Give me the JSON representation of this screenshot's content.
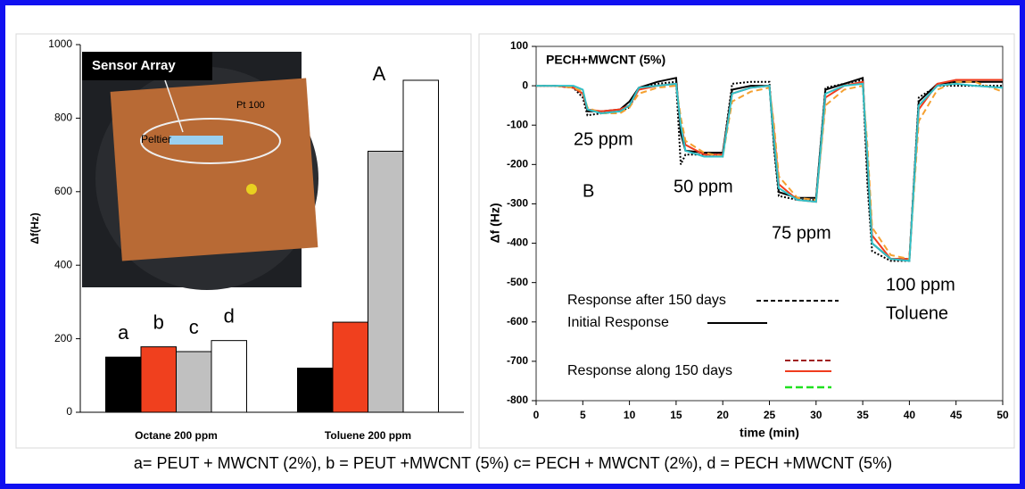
{
  "chart_data": [
    {
      "type": "bar",
      "ylabel": "Δf(Hz)",
      "annotation": "A",
      "inset_labels": [
        "Sensor Array",
        "Peltier",
        "Pt 100"
      ],
      "categories": [
        "Octane 200 ppm",
        "Toluene 200 ppm"
      ],
      "series": [
        {
          "name": "a",
          "color": "#000000",
          "values": [
            150,
            120
          ]
        },
        {
          "name": "b",
          "color": "#f0401e",
          "values": [
            178,
            245
          ]
        },
        {
          "name": "c",
          "color": "#c0c0c0",
          "values": [
            165,
            710
          ]
        },
        {
          "name": "d",
          "color": "#ffffff",
          "values": [
            195,
            903
          ]
        }
      ],
      "ylim": [
        0,
        1000
      ],
      "yticks": [
        0,
        200,
        400,
        600,
        800,
        1000
      ]
    },
    {
      "type": "line",
      "title": "PECH+MWCNT (5%)",
      "xlabel": "time (min)",
      "ylabel": "Δf (Hz)",
      "annotations": [
        "25 ppm",
        "50 ppm",
        "75 ppm",
        "100 ppm",
        "Toluene",
        "B"
      ],
      "x": [
        0,
        2,
        4,
        5,
        5.5,
        7,
        9,
        10,
        11,
        13,
        15,
        15.5,
        16,
        18,
        20,
        21,
        23,
        25,
        25.5,
        26,
        28,
        30,
        31,
        33,
        35,
        35.5,
        36,
        38,
        40,
        41,
        43,
        45,
        47,
        50
      ],
      "series": [
        {
          "name": "Response after 150 days",
          "color": "#000000",
          "style": "dotted",
          "values": [
            0,
            0,
            -5,
            -30,
            -75,
            -70,
            -65,
            -55,
            -5,
            5,
            10,
            -200,
            -175,
            -175,
            -175,
            5,
            10,
            10,
            -160,
            -280,
            -290,
            -290,
            -5,
            5,
            15,
            -250,
            -420,
            -445,
            -445,
            -30,
            0,
            0,
            0,
            0
          ]
        },
        {
          "name": "Initial Response",
          "color": "#000000",
          "style": "solid",
          "values": [
            0,
            0,
            -5,
            -20,
            -65,
            -65,
            -60,
            -40,
            -5,
            10,
            20,
            -120,
            -165,
            -170,
            -170,
            -10,
            0,
            0,
            -150,
            -270,
            -285,
            -285,
            -10,
            5,
            20,
            -200,
            -400,
            -440,
            -440,
            -40,
            5,
            10,
            10,
            10
          ]
        },
        {
          "name": "Response along 150 days",
          "color": "#f03c1e",
          "style": "solid",
          "values": [
            0,
            0,
            -5,
            -20,
            -60,
            -65,
            -60,
            -50,
            -10,
            0,
            5,
            -100,
            -150,
            -175,
            -175,
            -20,
            -5,
            0,
            -120,
            -250,
            -290,
            -295,
            -30,
            0,
            10,
            -180,
            -380,
            -440,
            -440,
            -60,
            5,
            15,
            15,
            15
          ]
        },
        {
          "color": "#f5a030",
          "style": "dashed",
          "values": [
            0,
            0,
            -5,
            -15,
            -55,
            -70,
            -70,
            -55,
            -20,
            -5,
            0,
            -80,
            -140,
            -170,
            -180,
            -40,
            -15,
            -5,
            -100,
            -230,
            -285,
            -290,
            -50,
            -10,
            0,
            -150,
            -360,
            -430,
            -440,
            -90,
            -10,
            10,
            10,
            -15
          ]
        },
        {
          "color": "#30c0c8",
          "style": "solid",
          "values": [
            0,
            0,
            0,
            -10,
            -60,
            -70,
            -65,
            -50,
            -5,
            0,
            5,
            -100,
            -165,
            -180,
            -180,
            -20,
            -5,
            0,
            -140,
            -260,
            -290,
            -295,
            -20,
            0,
            5,
            -180,
            -400,
            -440,
            -445,
            -50,
            0,
            5,
            0,
            -5
          ]
        }
      ],
      "xlim": [
        0,
        50
      ],
      "xticks": [
        0,
        5,
        10,
        15,
        20,
        25,
        30,
        35,
        40,
        45,
        50
      ],
      "ylim": [
        -800,
        100
      ],
      "yticks": [
        -800,
        -700,
        -600,
        -500,
        -400,
        -300,
        -200,
        -100,
        0,
        100
      ]
    }
  ],
  "caption": "a= PEUT + MWCNT (2%), b = PEUT +MWCNT (5%) c= PECH + MWCNT (2%), d = PECH +MWCNT (5%)"
}
